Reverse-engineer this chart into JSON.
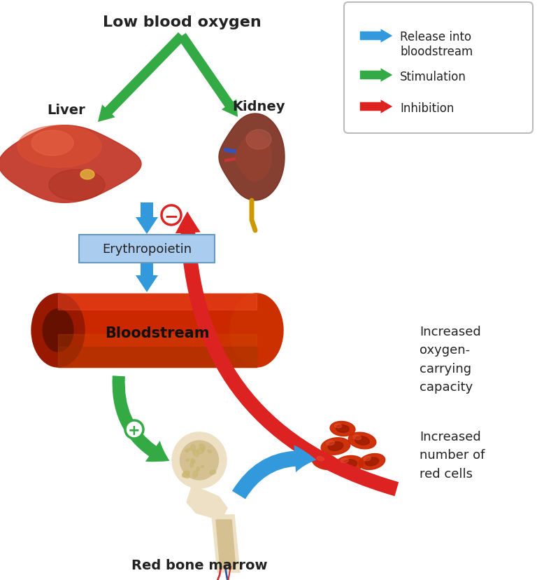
{
  "bg_color": "#ffffff",
  "arrow_blue": "#3399DD",
  "arrow_green": "#33AA44",
  "arrow_red": "#DD2222",
  "text_dark": "#222222",
  "epo_box_color": "#AACCEE",
  "epo_box_edge": "#6699BB",
  "labels": {
    "low_blood_oxygen": "Low blood oxygen",
    "liver": "Liver",
    "kidney": "Kidney",
    "erythropoietin": "Erythropoietin",
    "bloodstream": "Bloodstream",
    "red_bone_marrow": "Red bone marrow",
    "increased_oxygen": "Increased\noxygen-\ncarrying\ncapacity",
    "increased_rbc": "Increased\nnumber of\nred cells"
  },
  "legend": {
    "blue_label": "Release into\nbloodstream",
    "green_label": "Stimulation",
    "red_label": "Inhibition"
  }
}
